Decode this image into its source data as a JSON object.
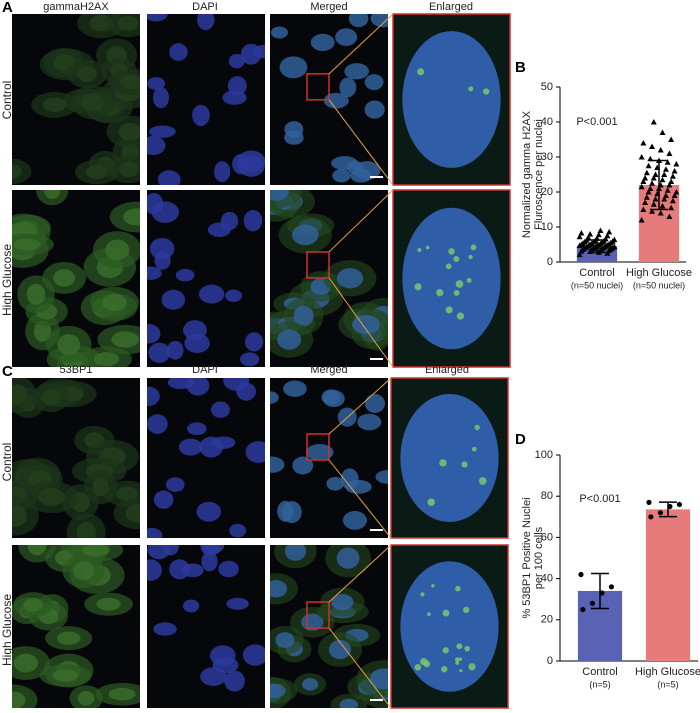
{
  "figure": {
    "panels": [
      "A",
      "B",
      "C",
      "D"
    ],
    "panel_a": {
      "columns": [
        "gammaH2AX",
        "DAPI",
        "Merged",
        "Enlarged"
      ],
      "rows": [
        "Control",
        "High Glucose"
      ]
    },
    "panel_c": {
      "columns": [
        "53BP1",
        "DAPI",
        "Merged",
        "Enlarged"
      ],
      "rows": [
        "Control",
        "High Glucose"
      ]
    }
  },
  "chart_data": [
    {
      "type": "bar",
      "ylabel": [
        "Normalized gamma H2AX",
        "Fluroscence per nuclei"
      ],
      "categories": [
        "Control",
        "High Glucose"
      ],
      "category_notes": [
        "(n=50 nuclei)",
        "(n=50 nuclei)"
      ],
      "colors": [
        "#5a62b6",
        "#e77b7c"
      ],
      "values": [
        4.5,
        22
      ],
      "errors": [
        1.8,
        7
      ],
      "points": [
        [
          2.1,
          2.5,
          2.8,
          3.0,
          3.1,
          3.3,
          3.4,
          3.5,
          3.6,
          3.7,
          3.8,
          3.9,
          4.0,
          4.0,
          4.1,
          4.2,
          4.3,
          4.4,
          4.5,
          4.5,
          4.6,
          4.7,
          4.8,
          4.9,
          5.0,
          5.0,
          5.1,
          5.2,
          5.3,
          5.4,
          5.5,
          5.6,
          5.7,
          5.8,
          5.9,
          6.0,
          6.1,
          6.2,
          6.4,
          6.6,
          6.8,
          7.0,
          7.2,
          7.5,
          7.8,
          8.0,
          8.3,
          8.6,
          9.0,
          3.2
        ],
        [
          12,
          13,
          14,
          14.5,
          15,
          15.5,
          16,
          16.5,
          17,
          17.5,
          18,
          18,
          18.5,
          19,
          19,
          19.5,
          20,
          20,
          20.5,
          21,
          21,
          21.5,
          22,
          22,
          22.5,
          23,
          23,
          23.5,
          24,
          24,
          24.5,
          25,
          25,
          25.5,
          26,
          26.5,
          27,
          27.5,
          28,
          28.5,
          29,
          29.5,
          30,
          31,
          32,
          33,
          34,
          35,
          37,
          40
        ]
      ],
      "marker": "triangle",
      "annotation": "P<0.001",
      "ylim": [
        0,
        50
      ],
      "yticks": [
        0,
        10,
        20,
        30,
        40,
        50
      ]
    },
    {
      "type": "bar",
      "ylabel": [
        "% 53BP1 Positive Nuclei",
        "per 100 cells"
      ],
      "categories": [
        "Control",
        "High Glucose"
      ],
      "category_notes": [
        "(n=5)",
        "(n=5)"
      ],
      "colors": [
        "#5a62b6",
        "#e77b7c"
      ],
      "values": [
        34,
        73.6
      ],
      "errors": [
        8.5,
        3.5
      ],
      "points": [
        [
          42,
          36,
          33,
          28,
          25
        ],
        [
          77,
          76,
          75,
          72,
          70
        ]
      ],
      "marker": "circle",
      "annotation": "P<0.001",
      "ylim": [
        0,
        100
      ],
      "yticks": [
        0,
        20,
        40,
        60,
        80,
        100
      ]
    }
  ]
}
